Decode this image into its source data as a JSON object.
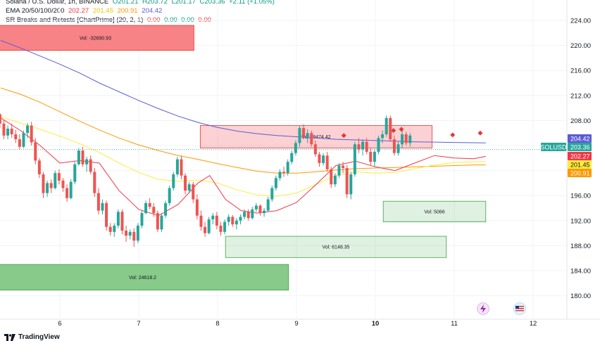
{
  "header": {
    "title": "Solana / U.S. Dollar, 1h, BINANCE",
    "ohlc": [
      "O201.21",
      "H203.72",
      "L201.17",
      "C203.36",
      "+2.11 (+1.05%)"
    ],
    "ema_label": "EMA 20/50/100/200",
    "ema_values": [
      "202.27",
      "201.45",
      "200.91",
      "204.42"
    ],
    "sr_label": "SR Breaks and Retests [ChartPrime] (20, 2, 1)",
    "sr_values": [
      "0.00",
      "0.00",
      "0.00",
      "0.00"
    ]
  },
  "colors": {
    "up": "#26a69a",
    "down": "#ef5350",
    "ema20": "#f23645",
    "ema50": "#ffeb3b",
    "ema100": "#ff9800",
    "ema200": "#5b5bd6",
    "zone_red": "#f77c80",
    "zone_green": "#81c784"
  },
  "footer": {
    "brand": "TradingView"
  },
  "chart_data": {
    "type": "candlestick",
    "symbol": "SOLUSD",
    "ylim": [
      178,
      225
    ],
    "y_ticks": [
      "224.00",
      "220.00",
      "216.00",
      "212.00",
      "208.00",
      "204.00",
      "200.00",
      "196.00",
      "192.00",
      "188.00",
      "184.00",
      "180.00"
    ],
    "x_ticks": [
      "6",
      "7",
      "8",
      "9",
      "10",
      "11",
      "12"
    ],
    "price_tags": [
      {
        "text": "204.42",
        "color": "#5b5bd6",
        "value": 204.42,
        "symbol": false
      },
      {
        "text": "203.36",
        "color": "#26a69a",
        "value": 203.36,
        "symbol": true
      },
      {
        "text": "202.27",
        "color": "#f23645",
        "value": 202.27,
        "symbol": false
      },
      {
        "text": "201.45",
        "color": "#ffeb3b",
        "value": 201.45,
        "symbol": false
      },
      {
        "text": "200.91",
        "color": "#ff9800",
        "value": 200.91,
        "symbol": false
      }
    ],
    "zones": [
      {
        "type": "resistance",
        "label": "Vol: -32890.93",
        "start": 5.2,
        "end": 7.7,
        "top": 223.2,
        "bottom": 219.2
      },
      {
        "type": "resistance",
        "label": "Vol: -9474.42",
        "start": 7.78,
        "end": 10.72,
        "top": 207.2,
        "bottom": 203.6
      },
      {
        "type": "support",
        "label": "Vol: 5066",
        "start": 10.1,
        "end": 11.4,
        "top": 195.1,
        "bottom": 191.8
      },
      {
        "type": "support",
        "label": "Vol: 6148.35",
        "start": 8.1,
        "end": 10.9,
        "top": 189.5,
        "bottom": 186.1
      },
      {
        "type": "support",
        "label": "Vol: 24618.2",
        "start": 5.2,
        "end": 8.9,
        "top": 185.0,
        "bottom": 180.9
      }
    ],
    "break_markers": [
      {
        "x": 9.6,
        "value": 205.6
      },
      {
        "x": 10.23,
        "value": 206.4
      },
      {
        "x": 10.33,
        "value": 206.6
      },
      {
        "x": 10.98,
        "value": 205.7
      },
      {
        "x": 11.33,
        "value": 206.0
      }
    ],
    "ema200": [
      [
        5.25,
        220.8
      ],
      [
        5.5,
        219.6
      ],
      [
        5.75,
        218.3
      ],
      [
        6.0,
        217.0
      ],
      [
        6.25,
        215.6
      ],
      [
        6.5,
        214.0
      ],
      [
        6.75,
        212.6
      ],
      [
        7.0,
        211.2
      ],
      [
        7.25,
        209.9
      ],
      [
        7.5,
        208.7
      ],
      [
        7.75,
        207.7
      ],
      [
        8.0,
        206.9
      ],
      [
        8.25,
        206.3
      ],
      [
        8.5,
        205.9
      ],
      [
        8.75,
        205.6
      ],
      [
        9.0,
        205.4
      ],
      [
        9.25,
        205.2
      ],
      [
        9.5,
        205.0
      ],
      [
        9.75,
        204.9
      ],
      [
        10.0,
        204.8
      ],
      [
        10.25,
        204.7
      ],
      [
        10.5,
        204.6
      ],
      [
        10.75,
        204.55
      ],
      [
        11.0,
        204.5
      ],
      [
        11.25,
        204.45
      ],
      [
        11.4,
        204.42
      ]
    ],
    "ema100": [
      [
        5.25,
        213.2
      ],
      [
        5.5,
        212.2
      ],
      [
        5.75,
        210.9
      ],
      [
        6.0,
        209.4
      ],
      [
        6.25,
        207.9
      ],
      [
        6.5,
        206.5
      ],
      [
        6.75,
        205.2
      ],
      [
        7.0,
        204.1
      ],
      [
        7.25,
        203.2
      ],
      [
        7.5,
        202.4
      ],
      [
        7.75,
        201.8
      ],
      [
        8.0,
        201.1
      ],
      [
        8.25,
        200.5
      ],
      [
        8.5,
        199.9
      ],
      [
        8.75,
        199.6
      ],
      [
        9.0,
        199.6
      ],
      [
        9.25,
        199.8
      ],
      [
        9.5,
        200.1
      ],
      [
        9.75,
        200.3
      ],
      [
        10.0,
        200.4
      ],
      [
        10.25,
        200.5
      ],
      [
        10.5,
        200.6
      ],
      [
        10.75,
        200.7
      ],
      [
        11.0,
        200.8
      ],
      [
        11.25,
        200.9
      ],
      [
        11.4,
        200.91
      ]
    ],
    "ema50": [
      [
        5.25,
        208.6
      ],
      [
        5.5,
        207.6
      ],
      [
        5.75,
        206.6
      ],
      [
        6.0,
        205.5
      ],
      [
        6.25,
        204.3
      ],
      [
        6.5,
        202.9
      ],
      [
        6.75,
        201.2
      ],
      [
        7.0,
        199.7
      ],
      [
        7.25,
        198.6
      ],
      [
        7.5,
        198.3
      ],
      [
        7.75,
        198.5
      ],
      [
        8.0,
        198.0
      ],
      [
        8.25,
        196.9
      ],
      [
        8.5,
        196.1
      ],
      [
        8.75,
        195.9
      ],
      [
        9.0,
        196.4
      ],
      [
        9.25,
        197.8
      ],
      [
        9.5,
        199.2
      ],
      [
        9.75,
        199.8
      ],
      [
        10.0,
        199.6
      ],
      [
        10.25,
        199.7
      ],
      [
        10.5,
        200.3
      ],
      [
        10.75,
        200.9
      ],
      [
        11.0,
        201.3
      ],
      [
        11.25,
        201.4
      ],
      [
        11.4,
        201.45
      ]
    ],
    "ema20": [
      [
        5.25,
        208.4
      ],
      [
        5.5,
        206.4
      ],
      [
        5.75,
        204.0
      ],
      [
        6.0,
        201.2
      ],
      [
        6.25,
        201.6
      ],
      [
        6.5,
        201.2
      ],
      [
        6.75,
        196.8
      ],
      [
        7.0,
        193.8
      ],
      [
        7.25,
        192.8
      ],
      [
        7.5,
        194.6
      ],
      [
        7.75,
        198.0
      ],
      [
        7.9,
        199.2
      ],
      [
        8.1,
        195.4
      ],
      [
        8.3,
        193.6
      ],
      [
        8.5,
        193.2
      ],
      [
        8.75,
        193.6
      ],
      [
        9.0,
        194.9
      ],
      [
        9.25,
        197.8
      ],
      [
        9.5,
        200.8
      ],
      [
        9.75,
        201.5
      ],
      [
        10.0,
        200.6
      ],
      [
        10.25,
        200.0
      ],
      [
        10.5,
        201.2
      ],
      [
        10.75,
        202.4
      ],
      [
        11.0,
        202.0
      ],
      [
        11.25,
        201.9
      ],
      [
        11.4,
        202.27
      ]
    ],
    "candles": [
      [
        5.24,
        209.0,
        209.2,
        206.8,
        207.5
      ],
      [
        5.29,
        207.5,
        208.0,
        205.0,
        205.6
      ],
      [
        5.34,
        205.6,
        207.2,
        205.0,
        206.7
      ],
      [
        5.39,
        206.7,
        207.5,
        205.2,
        205.8
      ],
      [
        5.44,
        205.8,
        206.5,
        204.4,
        205.0
      ],
      [
        5.49,
        205.0,
        205.8,
        203.4,
        203.8
      ],
      [
        5.54,
        203.8,
        206.4,
        203.6,
        206.0
      ],
      [
        5.59,
        206.0,
        207.6,
        205.2,
        207.2
      ],
      [
        5.64,
        207.2,
        207.8,
        204.0,
        204.5
      ],
      [
        5.69,
        204.5,
        205.2,
        201.0,
        201.6
      ],
      [
        5.74,
        201.6,
        202.0,
        198.8,
        199.4
      ],
      [
        5.79,
        199.4,
        199.8,
        195.6,
        196.4
      ],
      [
        5.84,
        196.4,
        198.4,
        195.8,
        198.0
      ],
      [
        5.89,
        198.0,
        198.6,
        196.4,
        197.2
      ],
      [
        5.94,
        197.2,
        200.0,
        197.0,
        199.6
      ],
      [
        5.99,
        199.6,
        200.2,
        197.8,
        198.4
      ],
      [
        6.04,
        198.4,
        198.8,
        196.6,
        197.2
      ],
      [
        6.09,
        197.2,
        197.8,
        195.0,
        195.6
      ],
      [
        6.14,
        195.6,
        198.6,
        195.4,
        198.2
      ],
      [
        6.19,
        198.2,
        201.4,
        197.8,
        201.0
      ],
      [
        6.24,
        201.0,
        203.6,
        200.8,
        203.2
      ],
      [
        6.29,
        203.2,
        203.8,
        200.6,
        201.0
      ],
      [
        6.34,
        201.0,
        202.2,
        199.8,
        201.8
      ],
      [
        6.39,
        201.8,
        202.4,
        199.4,
        199.8
      ],
      [
        6.44,
        199.8,
        200.4,
        195.8,
        196.4
      ],
      [
        6.49,
        196.4,
        197.2,
        193.0,
        193.6
      ],
      [
        6.54,
        193.6,
        195.4,
        193.0,
        194.8
      ],
      [
        6.59,
        194.8,
        195.2,
        190.4,
        191.0
      ],
      [
        6.64,
        191.0,
        191.6,
        189.6,
        190.2
      ],
      [
        6.69,
        190.2,
        191.6,
        189.4,
        191.2
      ],
      [
        6.74,
        191.2,
        193.8,
        190.8,
        193.4
      ],
      [
        6.79,
        193.4,
        193.8,
        189.8,
        190.4
      ],
      [
        6.84,
        190.4,
        191.2,
        188.6,
        189.6
      ],
      [
        6.89,
        189.6,
        190.6,
        189.0,
        190.2
      ],
      [
        6.94,
        190.2,
        190.8,
        187.8,
        188.8
      ],
      [
        6.99,
        188.8,
        191.6,
        188.4,
        191.2
      ],
      [
        7.04,
        191.2,
        193.6,
        190.8,
        193.2
      ],
      [
        7.09,
        193.2,
        195.2,
        193.0,
        194.8
      ],
      [
        7.14,
        194.8,
        195.6,
        193.8,
        194.2
      ],
      [
        7.19,
        194.2,
        194.8,
        192.6,
        193.2
      ],
      [
        7.24,
        193.2,
        193.6,
        190.2,
        190.6
      ],
      [
        7.29,
        190.6,
        193.2,
        190.2,
        192.8
      ],
      [
        7.34,
        192.8,
        195.2,
        192.4,
        194.8
      ],
      [
        7.39,
        194.8,
        197.6,
        194.4,
        197.2
      ],
      [
        7.44,
        197.2,
        199.8,
        196.8,
        199.4
      ],
      [
        7.49,
        199.4,
        202.2,
        199.0,
        201.8
      ],
      [
        7.54,
        201.8,
        202.4,
        198.6,
        199.2
      ],
      [
        7.59,
        199.2,
        199.6,
        196.2,
        196.8
      ],
      [
        7.64,
        196.8,
        198.2,
        196.4,
        197.8
      ],
      [
        7.69,
        197.8,
        198.2,
        194.8,
        195.4
      ],
      [
        7.74,
        195.4,
        196.2,
        192.2,
        192.8
      ],
      [
        7.79,
        192.8,
        193.6,
        190.4,
        191.0
      ],
      [
        7.84,
        191.0,
        191.8,
        189.4,
        190.0
      ],
      [
        7.89,
        190.0,
        192.6,
        189.8,
        192.2
      ],
      [
        7.94,
        192.2,
        193.2,
        191.4,
        192.8
      ],
      [
        7.99,
        192.8,
        193.4,
        190.6,
        191.2
      ],
      [
        8.04,
        191.2,
        191.8,
        189.6,
        190.2
      ],
      [
        8.09,
        190.2,
        192.2,
        189.8,
        191.8
      ],
      [
        8.14,
        191.8,
        193.0,
        191.2,
        192.6
      ],
      [
        8.19,
        192.6,
        192.9,
        191.0,
        191.4
      ],
      [
        8.24,
        191.4,
        192.4,
        190.6,
        192.0
      ],
      [
        8.29,
        192.0,
        193.0,
        191.4,
        192.6
      ],
      [
        8.34,
        192.6,
        193.8,
        192.2,
        193.4
      ],
      [
        8.39,
        193.4,
        193.8,
        192.0,
        192.4
      ],
      [
        8.44,
        192.4,
        194.2,
        192.2,
        193.8
      ],
      [
        8.49,
        193.8,
        194.8,
        193.4,
        194.4
      ],
      [
        8.54,
        194.4,
        194.6,
        192.8,
        193.2
      ],
      [
        8.59,
        193.2,
        194.0,
        192.6,
        193.6
      ],
      [
        8.64,
        193.6,
        195.8,
        193.4,
        195.4
      ],
      [
        8.69,
        195.4,
        197.6,
        195.0,
        197.2
      ],
      [
        8.74,
        197.2,
        199.2,
        196.8,
        198.8
      ],
      [
        8.79,
        198.8,
        200.2,
        198.4,
        199.8
      ],
      [
        8.84,
        199.8,
        200.6,
        199.0,
        199.6
      ],
      [
        8.89,
        199.6,
        201.8,
        199.2,
        201.4
      ],
      [
        8.94,
        201.4,
        203.2,
        201.0,
        202.8
      ],
      [
        8.99,
        202.8,
        204.8,
        202.4,
        204.4
      ],
      [
        9.04,
        204.4,
        207.2,
        203.8,
        206.8
      ],
      [
        9.09,
        206.8,
        207.4,
        205.0,
        205.4
      ],
      [
        9.14,
        205.4,
        206.6,
        204.4,
        206.0
      ],
      [
        9.19,
        206.0,
        206.4,
        203.8,
        204.2
      ],
      [
        9.24,
        204.2,
        204.8,
        202.2,
        202.6
      ],
      [
        9.29,
        202.6,
        203.0,
        200.6,
        201.2
      ],
      [
        9.34,
        201.2,
        202.8,
        200.8,
        202.4
      ],
      [
        9.39,
        202.4,
        203.0,
        199.8,
        200.2
      ],
      [
        9.44,
        200.2,
        200.6,
        197.2,
        197.8
      ],
      [
        9.49,
        197.8,
        199.6,
        197.4,
        199.2
      ],
      [
        9.54,
        199.2,
        201.2,
        198.8,
        200.8
      ],
      [
        9.59,
        200.8,
        201.4,
        199.6,
        200.4
      ],
      [
        9.64,
        200.4,
        200.9,
        195.6,
        196.2
      ],
      [
        9.69,
        196.2,
        199.8,
        195.4,
        199.4
      ],
      [
        9.74,
        199.4,
        204.6,
        199.0,
        204.2
      ],
      [
        9.79,
        204.2,
        205.2,
        202.8,
        203.4
      ],
      [
        9.84,
        203.4,
        205.0,
        202.4,
        204.6
      ],
      [
        9.89,
        204.6,
        205.2,
        202.6,
        203.0
      ],
      [
        9.94,
        203.0,
        203.6,
        200.8,
        201.4
      ],
      [
        9.99,
        201.4,
        203.4,
        200.6,
        203.0
      ],
      [
        10.04,
        203.0,
        205.6,
        202.6,
        205.2
      ],
      [
        10.09,
        205.2,
        206.4,
        204.4,
        205.8
      ],
      [
        10.14,
        205.8,
        208.8,
        205.4,
        208.4
      ],
      [
        10.19,
        208.4,
        208.8,
        204.6,
        205.0
      ],
      [
        10.24,
        205.0,
        205.6,
        202.4,
        202.8
      ],
      [
        10.29,
        202.8,
        204.6,
        202.4,
        204.2
      ],
      [
        10.34,
        204.2,
        206.4,
        203.6,
        205.8
      ],
      [
        10.39,
        205.8,
        206.2,
        204.0,
        204.4
      ],
      [
        10.44,
        204.4,
        206.0,
        203.8,
        205.6
      ]
    ]
  }
}
